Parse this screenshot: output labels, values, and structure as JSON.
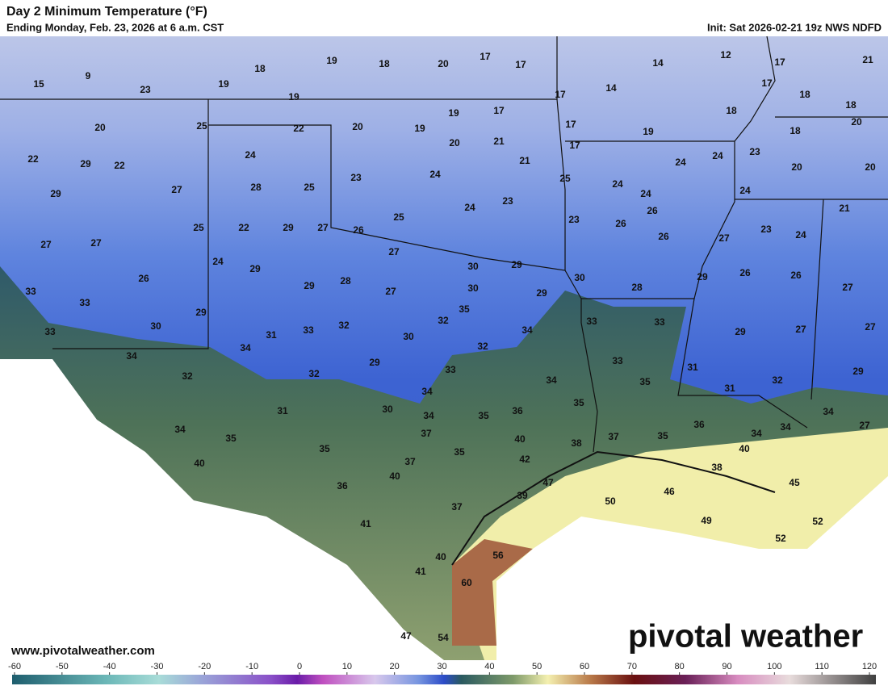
{
  "header": {
    "title": "Day 2 Minimum Temperature (°F)",
    "subtitle": "Ending Monday, Feb. 23, 2026 at 6 a.m. CST",
    "init": "Init: Sat 2026-02-21 19z NWS NDFD"
  },
  "labels": [
    15,
    9,
    23,
    19,
    18,
    19,
    18,
    20,
    17,
    17,
    14,
    12,
    17,
    21,
    19,
    17,
    14,
    17,
    18,
    18,
    18,
    20,
    25,
    22,
    20,
    19,
    19,
    17,
    17,
    19,
    18,
    20,
    22,
    29,
    22,
    24,
    20,
    21,
    17,
    24,
    23,
    20,
    20,
    21,
    24,
    27,
    28,
    25,
    23,
    24,
    25,
    24,
    24,
    24,
    29,
    23,
    24,
    26,
    21,
    25,
    23,
    26,
    23,
    24,
    27,
    27,
    25,
    22,
    29,
    27,
    26,
    26,
    27,
    24,
    29,
    27,
    30,
    29,
    30,
    26,
    28,
    29,
    30,
    29,
    28,
    29,
    26,
    26,
    27,
    33,
    33,
    27,
    35,
    29,
    30,
    33,
    33,
    32,
    32,
    34,
    33,
    33,
    29,
    27,
    27,
    31,
    34,
    30,
    32,
    34,
    29,
    33,
    32,
    32,
    33,
    34,
    35,
    31,
    32,
    29,
    34,
    31,
    35,
    31,
    30,
    34,
    35,
    36,
    36,
    34,
    34,
    27,
    34,
    35,
    37,
    40,
    38,
    37,
    35,
    34,
    40,
    40,
    35,
    35,
    37,
    42,
    38,
    36,
    40,
    47,
    46,
    45,
    39,
    50,
    37,
    49,
    52,
    52,
    41,
    56,
    40,
    41,
    60,
    47,
    54
  ],
  "watermark": {
    "url": "www.pivotalweather.com",
    "logo": "pivotal weather"
  },
  "colorbar": {
    "ticks": [
      -60,
      -50,
      -40,
      -30,
      -20,
      -10,
      0,
      10,
      20,
      30,
      40,
      50,
      60,
      70,
      80,
      90,
      100,
      110,
      120
    ]
  }
}
